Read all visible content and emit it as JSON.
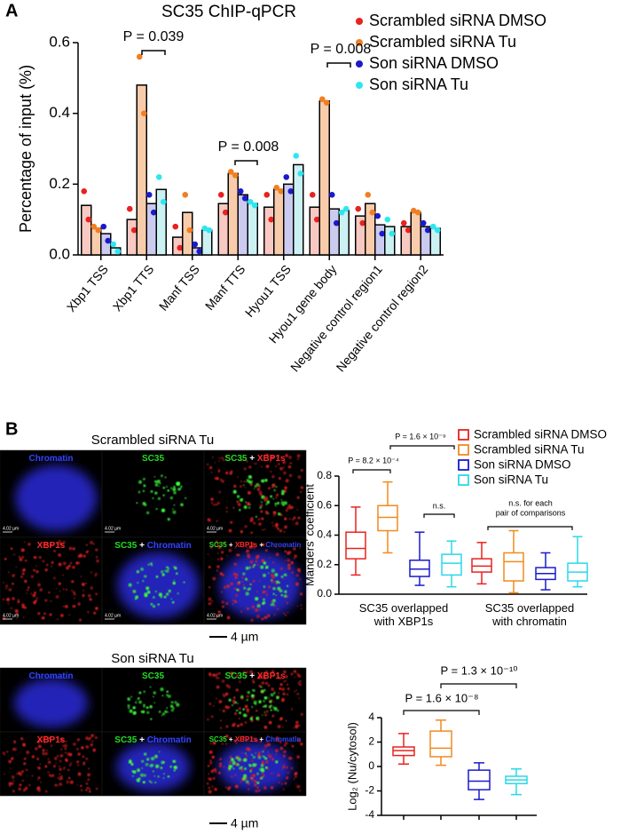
{
  "panels": [
    "A",
    "B"
  ],
  "chart_data": [
    {
      "type": "bar",
      "title": "SC35 ChIP-qPCR",
      "ylabel": "Percentage of input (%)",
      "categories": [
        "Xbp1 TSS",
        "Xbp1 TTS",
        "Manf TSS",
        "Manf TTS",
        "Hyou1 TSS",
        "Hyou1 gene body",
        "Negative control region1",
        "Negative control region2"
      ],
      "ylim": [
        0,
        0.6
      ],
      "yticks": [
        {
          "value": 0,
          "label": "0.0"
        },
        0.2,
        0.4,
        0.6
      ],
      "series": [
        {
          "name": "Scrambled siRNA DMSO",
          "color": "#e8221f",
          "bar_color": "#f7c9c2",
          "values": [
            0.14,
            0.1,
            0.05,
            0.145,
            0.135,
            0.135,
            0.11,
            0.08
          ],
          "points": [
            [
              0.18,
              0.1
            ],
            [
              0.13,
              0.07
            ],
            [
              0.08,
              0.02
            ],
            [
              0.17,
              0.12
            ],
            [
              0.17,
              0.1
            ],
            [
              0.17,
              0.1
            ],
            [
              0.13,
              0.09
            ],
            [
              0.09,
              0.07
            ]
          ]
        },
        {
          "name": "Scrambled siRNA Tu",
          "color": "#f07f22",
          "bar_color": "#f8ccab",
          "values": [
            0.075,
            0.48,
            0.12,
            0.23,
            0.185,
            0.435,
            0.145,
            0.12
          ],
          "points": [
            [
              0.08,
              0.07
            ],
            [
              0.56,
              0.4
            ],
            [
              0.17,
              0.07
            ],
            [
              0.235,
              0.225
            ],
            [
              0.19,
              0.18
            ],
            [
              0.44,
              0.43
            ],
            [
              0.17,
              0.12
            ],
            [
              0.125,
              0.12
            ]
          ]
        },
        {
          "name": "Son siRNA DMSO",
          "color": "#1a1acc",
          "bar_color": "#cbcaef",
          "values": [
            0.06,
            0.145,
            0.02,
            0.17,
            0.2,
            0.13,
            0.085,
            0.08
          ],
          "points": [
            [
              0.08,
              0.04
            ],
            [
              0.17,
              0.12
            ],
            [
              0.03,
              0.01
            ],
            [
              0.18,
              0.16
            ],
            [
              0.22,
              0.18
            ],
            [
              0.17,
              0.09
            ],
            [
              0.11,
              0.06
            ],
            [
              0.09,
              0.07
            ]
          ]
        },
        {
          "name": "Son siRNA Tu",
          "color": "#2ee6f0",
          "bar_color": "#ccf1f3",
          "values": [
            0.02,
            0.185,
            0.07,
            0.145,
            0.255,
            0.125,
            0.08,
            0.075
          ],
          "points": [
            [
              0.03,
              0.01
            ],
            [
              0.22,
              0.15
            ],
            [
              0.075,
              0.07
            ],
            [
              0.15,
              0.14
            ],
            [
              0.28,
              0.23
            ],
            [
              0.12,
              0.13
            ],
            [
              0.1,
              0.06
            ],
            [
              0.08,
              0.07
            ]
          ]
        }
      ],
      "annotations": [
        "P = 0.039",
        "P = 0.008",
        "P = 0.008"
      ]
    },
    {
      "type": "box",
      "ylabel": "Manders' coefficient",
      "categories": [
        "SC35 overlapped with XBP1s",
        "SC35 overlapped with chromatin"
      ],
      "ylim": [
        0,
        0.8
      ],
      "yticks": [
        {
          "value": 0,
          "label": "0.0"
        },
        0.2,
        0.4,
        0.6,
        0.8
      ],
      "series": [
        {
          "name": "Scrambled siRNA DMSO",
          "color": "#e8221f",
          "boxes": [
            {
              "min": 0.13,
              "q1": 0.24,
              "median": 0.31,
              "q3": 0.42,
              "max": 0.59
            },
            {
              "min": 0.07,
              "q1": 0.15,
              "median": 0.19,
              "q3": 0.24,
              "max": 0.35
            }
          ]
        },
        {
          "name": "Scrambled siRNA Tu",
          "color": "#f08a1f",
          "boxes": [
            {
              "min": 0.28,
              "q1": 0.43,
              "median": 0.52,
              "q3": 0.6,
              "max": 0.76
            },
            {
              "min": 0.01,
              "q1": 0.09,
              "median": 0.22,
              "q3": 0.28,
              "max": 0.43
            }
          ]
        },
        {
          "name": "Son siRNA DMSO",
          "color": "#1a1acc",
          "boxes": [
            {
              "min": 0.06,
              "q1": 0.12,
              "median": 0.17,
              "q3": 0.23,
              "max": 0.42
            },
            {
              "min": 0.03,
              "q1": 0.1,
              "median": 0.14,
              "q3": 0.18,
              "max": 0.28
            }
          ]
        },
        {
          "name": "Son siRNA Tu",
          "color": "#2ad8e8",
          "boxes": [
            {
              "min": 0.05,
              "q1": 0.13,
              "median": 0.21,
              "q3": 0.27,
              "max": 0.36
            },
            {
              "min": 0.05,
              "q1": 0.09,
              "median": 0.15,
              "q3": 0.21,
              "max": 0.39
            }
          ]
        }
      ],
      "annotations": [
        "P = 8.2 × 10⁻⁴",
        "P = 1.6 × 10⁻⁹",
        "n.s.",
        "n.s. for each",
        "pair of comparisons"
      ]
    },
    {
      "type": "box",
      "ylabel": "Log₂ (Nu/cytosol)",
      "ylim": [
        -4,
        4
      ],
      "yticks": [
        -4,
        -2,
        0,
        2,
        4
      ],
      "series": [
        {
          "color": "#e8221f",
          "boxes": [
            {
              "min": 0.2,
              "q1": 0.9,
              "median": 1.3,
              "q3": 1.6,
              "max": 2.7
            }
          ]
        },
        {
          "color": "#f08a1f",
          "boxes": [
            {
              "min": 0.1,
              "q1": 0.8,
              "median": 1.5,
              "q3": 2.9,
              "max": 3.8
            }
          ]
        },
        {
          "color": "#1a1acc",
          "boxes": [
            {
              "min": -2.7,
              "q1": -1.9,
              "median": -1.2,
              "q3": -0.3,
              "max": 0.3
            }
          ]
        },
        {
          "color": "#2ad8e8",
          "boxes": [
            {
              "min": -2.3,
              "q1": -1.4,
              "median": -1.1,
              "q3": -0.8,
              "max": -0.2
            }
          ]
        }
      ],
      "annotations": [
        "P = 1.3 × 10⁻¹⁰",
        "P = 1.6 × 10⁻⁸"
      ]
    }
  ],
  "images": [
    {
      "title": "Scrambled siRNA Tu",
      "scale_label": "4.02 µm",
      "scale_bar": "4 µm",
      "tiles": [
        [
          "Chromatin"
        ],
        [
          "SC35"
        ],
        [
          "SC35",
          " + ",
          "XBP1s"
        ],
        [
          "XBP1s"
        ],
        [
          "SC35",
          " + ",
          "Chromatin"
        ],
        [
          "SC35",
          " + ",
          "XBP1s",
          " + ",
          "Chromatin"
        ]
      ]
    },
    {
      "title": "Son siRNA Tu",
      "scale_bar": "4 µm",
      "tiles": [
        [
          "Chromatin"
        ],
        [
          "SC35"
        ],
        [
          "SC35",
          " + ",
          "XBP1s"
        ],
        [
          "XBP1s"
        ],
        [
          "SC35",
          " + ",
          "Chromatin"
        ],
        [
          "SC35",
          " + ",
          "XBP1s",
          " + ",
          "Chromatin"
        ]
      ]
    }
  ]
}
